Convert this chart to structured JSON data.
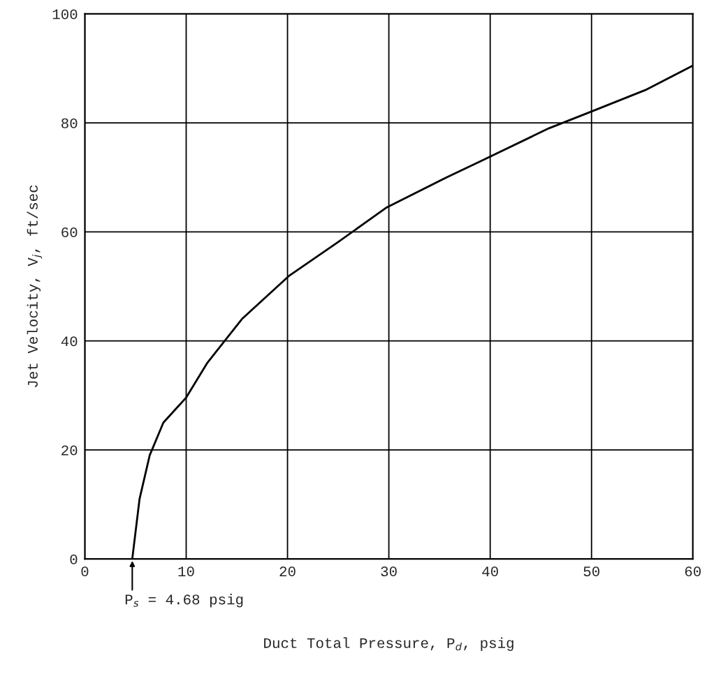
{
  "chart_data": {
    "type": "line",
    "xlabel": "Duct Total Pressure, P$_{d}$, psig",
    "ylabel": "Jet Velocity, V$_{j}$, ft/sec",
    "x": [
      4.68,
      5.4,
      6.4,
      7.75,
      10,
      12.1,
      15.5,
      20.2,
      24.9,
      29.8,
      35.7,
      39.1,
      45.8,
      49.9,
      55.3,
      60
    ],
    "series": [
      {
        "color": "#000000",
        "values": [
          0,
          11,
          19,
          25,
          29.6,
          36,
          44,
          52,
          58,
          64.5,
          70,
          73,
          79,
          82,
          86,
          90.5
        ]
      }
    ],
    "xlim": [
      0,
      60
    ],
    "ylim": [
      0,
      100
    ],
    "xticks": [
      0,
      10,
      20,
      30,
      40,
      50,
      60
    ],
    "yticks": [
      0,
      20,
      40,
      60,
      80,
      100
    ],
    "grid": true,
    "legend": false,
    "marker": "none",
    "line_style": "solid",
    "annotations": [
      {
        "text": "P$_{s}$ = 4.68 psig",
        "x": 4.68,
        "y": 0
      }
    ]
  }
}
